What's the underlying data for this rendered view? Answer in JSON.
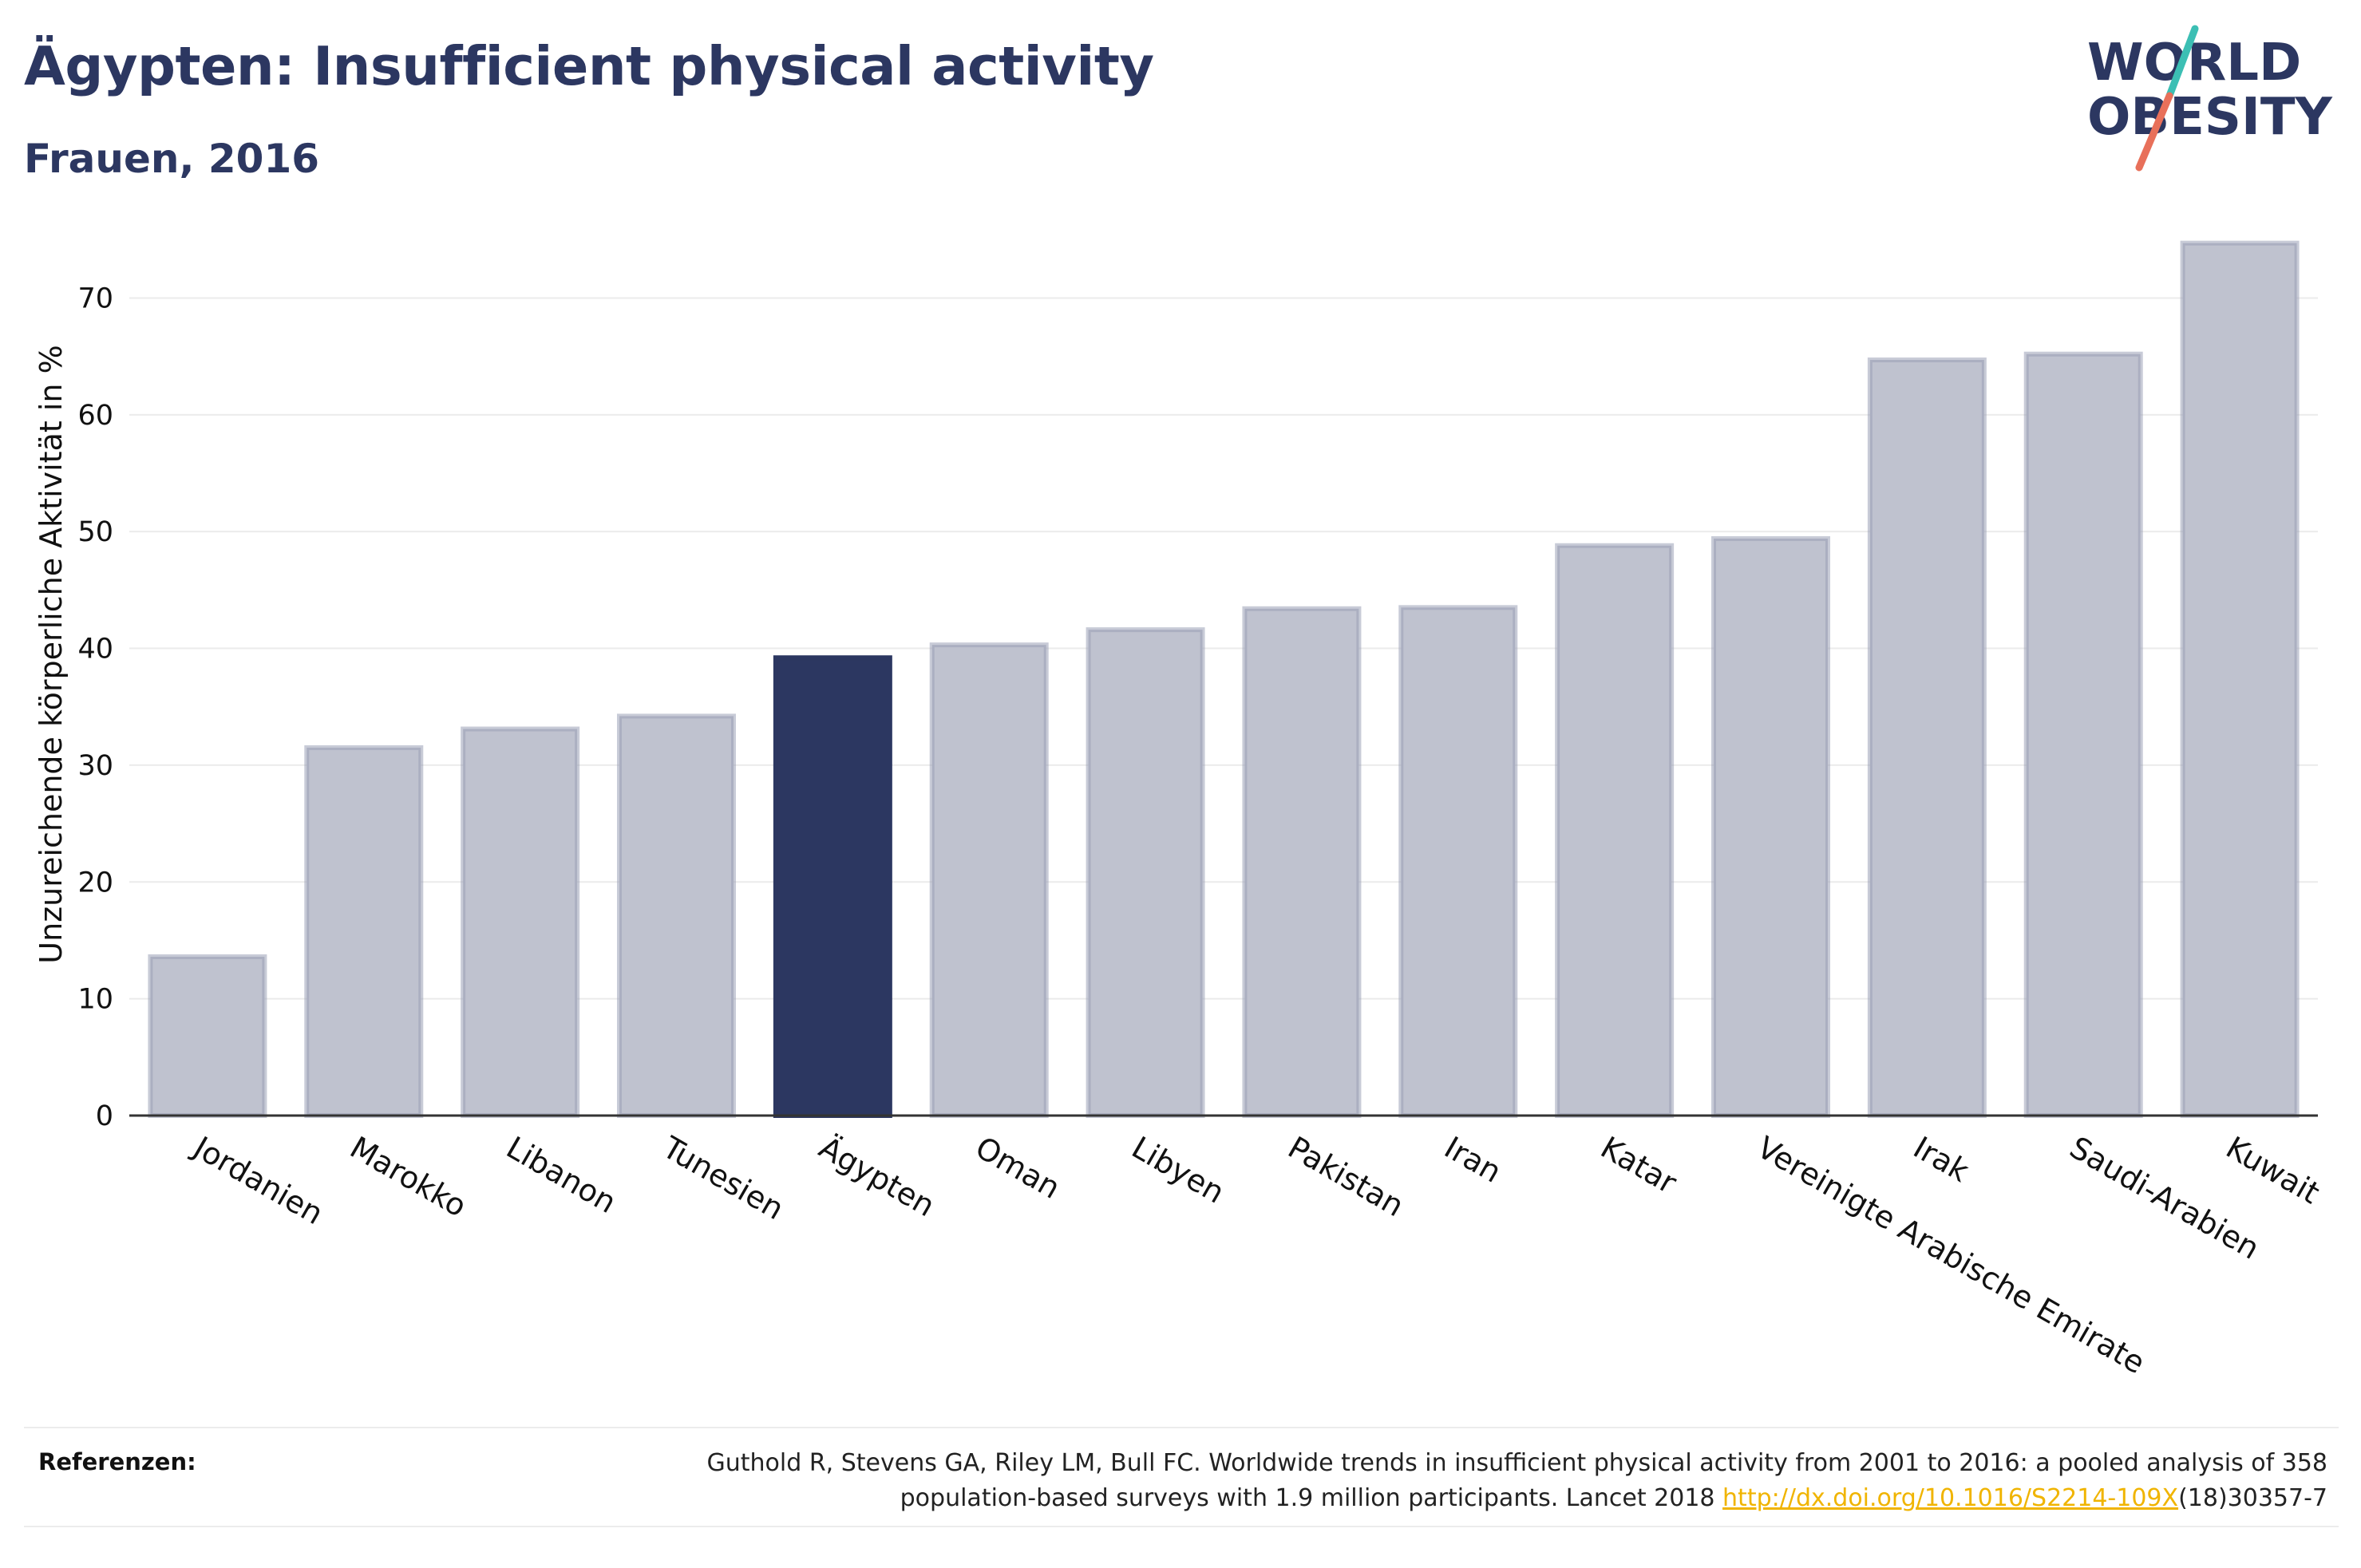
{
  "header": {
    "title": "Ägypten: Insufficient physical activity",
    "subtitle": "Frauen, 2016"
  },
  "logo": {
    "line1": "WORLD",
    "line2": "OBESITY",
    "colors": {
      "text": "#2c3761",
      "slash_teal": "#3cbfb4",
      "slash_coral": "#e8705a"
    }
  },
  "chart_data": {
    "type": "bar",
    "ylabel": "Unzureichende körperliche Aktivität in %",
    "xlabel": "",
    "ylim": [
      0,
      77
    ],
    "yticks": [
      0,
      10,
      20,
      30,
      40,
      50,
      60,
      70
    ],
    "grid": true,
    "categories": [
      "Jordanien",
      "Marokko",
      "Libanon",
      "Tunesien",
      "Ägypten",
      "Oman",
      "Libyen",
      "Pakistan",
      "Iran",
      "Katar",
      "Vereinigte Arabische Emirate",
      "Irak",
      "Saudi-Arabien",
      "Kuwait"
    ],
    "values": [
      13.6,
      31.5,
      33.1,
      34.2,
      39.2,
      40.3,
      41.6,
      43.4,
      43.5,
      48.8,
      49.4,
      64.7,
      65.2,
      74.7
    ],
    "highlight": "Ägypten",
    "colors": {
      "highlight": "#2c3761",
      "default_fill": "#bfc2cf",
      "default_stroke": "#9aa0b6"
    }
  },
  "references": {
    "label": "Referenzen:",
    "text_line1": "Guthold R, Stevens GA, Riley LM, Bull FC. Worldwide trends in insufficient physical activity from 2001 to 2016: a pooled analysis of 358",
    "text_line2_before": "population-based surveys with 1.9 million participants. Lancet 2018 ",
    "link": "http://dx.doi.org/10.1016/S2214-109X",
    "text_line2_after": "(18)30357-7",
    "link_color": "#f0b400"
  }
}
